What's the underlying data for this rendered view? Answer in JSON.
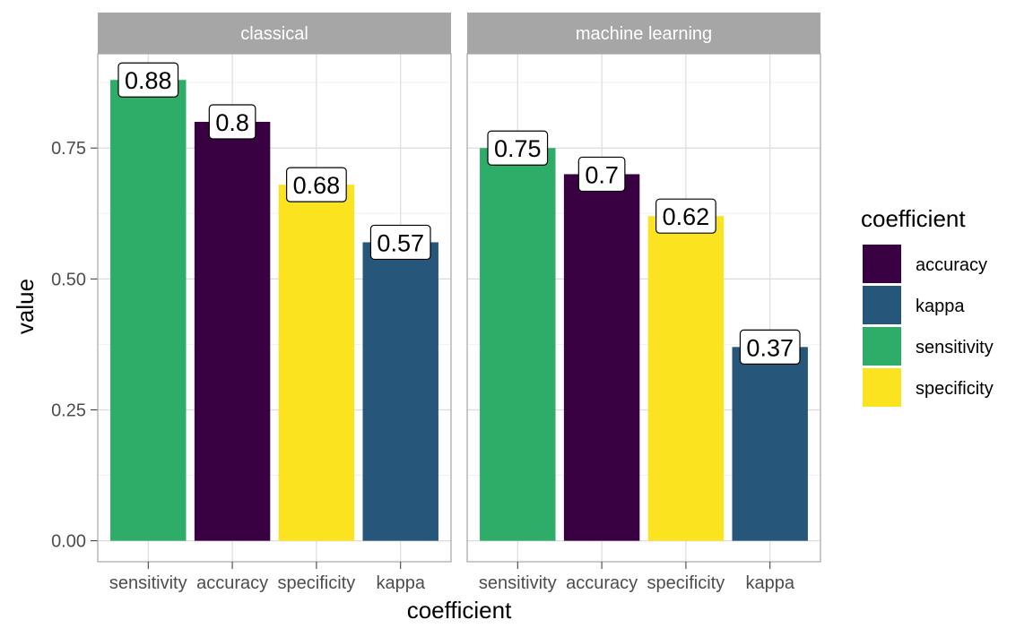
{
  "chart_data": {
    "type": "bar",
    "xlabel": "coefficient",
    "ylabel": "value",
    "ylim": [
      -0.04,
      0.93
    ],
    "yticks": [
      0.0,
      0.25,
      0.5,
      0.75
    ],
    "ytick_labels": [
      "0.00",
      "0.25",
      "0.50",
      "0.75"
    ],
    "grid": true,
    "legend": {
      "title": "coefficient",
      "position": "right",
      "items": [
        {
          "label": "accuracy",
          "color": "#3a0142"
        },
        {
          "label": "kappa",
          "color": "#26567a"
        },
        {
          "label": "sensitivity",
          "color": "#2ead68"
        },
        {
          "label": "specificity",
          "color": "#fbe41f"
        }
      ]
    },
    "facets": [
      {
        "title": "classical",
        "categories": [
          "sensitivity",
          "accuracy",
          "specificity",
          "kappa"
        ],
        "values": [
          0.88,
          0.8,
          0.68,
          0.57
        ],
        "labels": [
          "0.88",
          "0.8",
          "0.68",
          "0.57"
        ]
      },
      {
        "title": "machine learning",
        "categories": [
          "sensitivity",
          "accuracy",
          "specificity",
          "kappa"
        ],
        "values": [
          0.75,
          0.7,
          0.62,
          0.37
        ],
        "labels": [
          "0.75",
          "0.7",
          "0.62",
          "0.37"
        ]
      }
    ]
  }
}
